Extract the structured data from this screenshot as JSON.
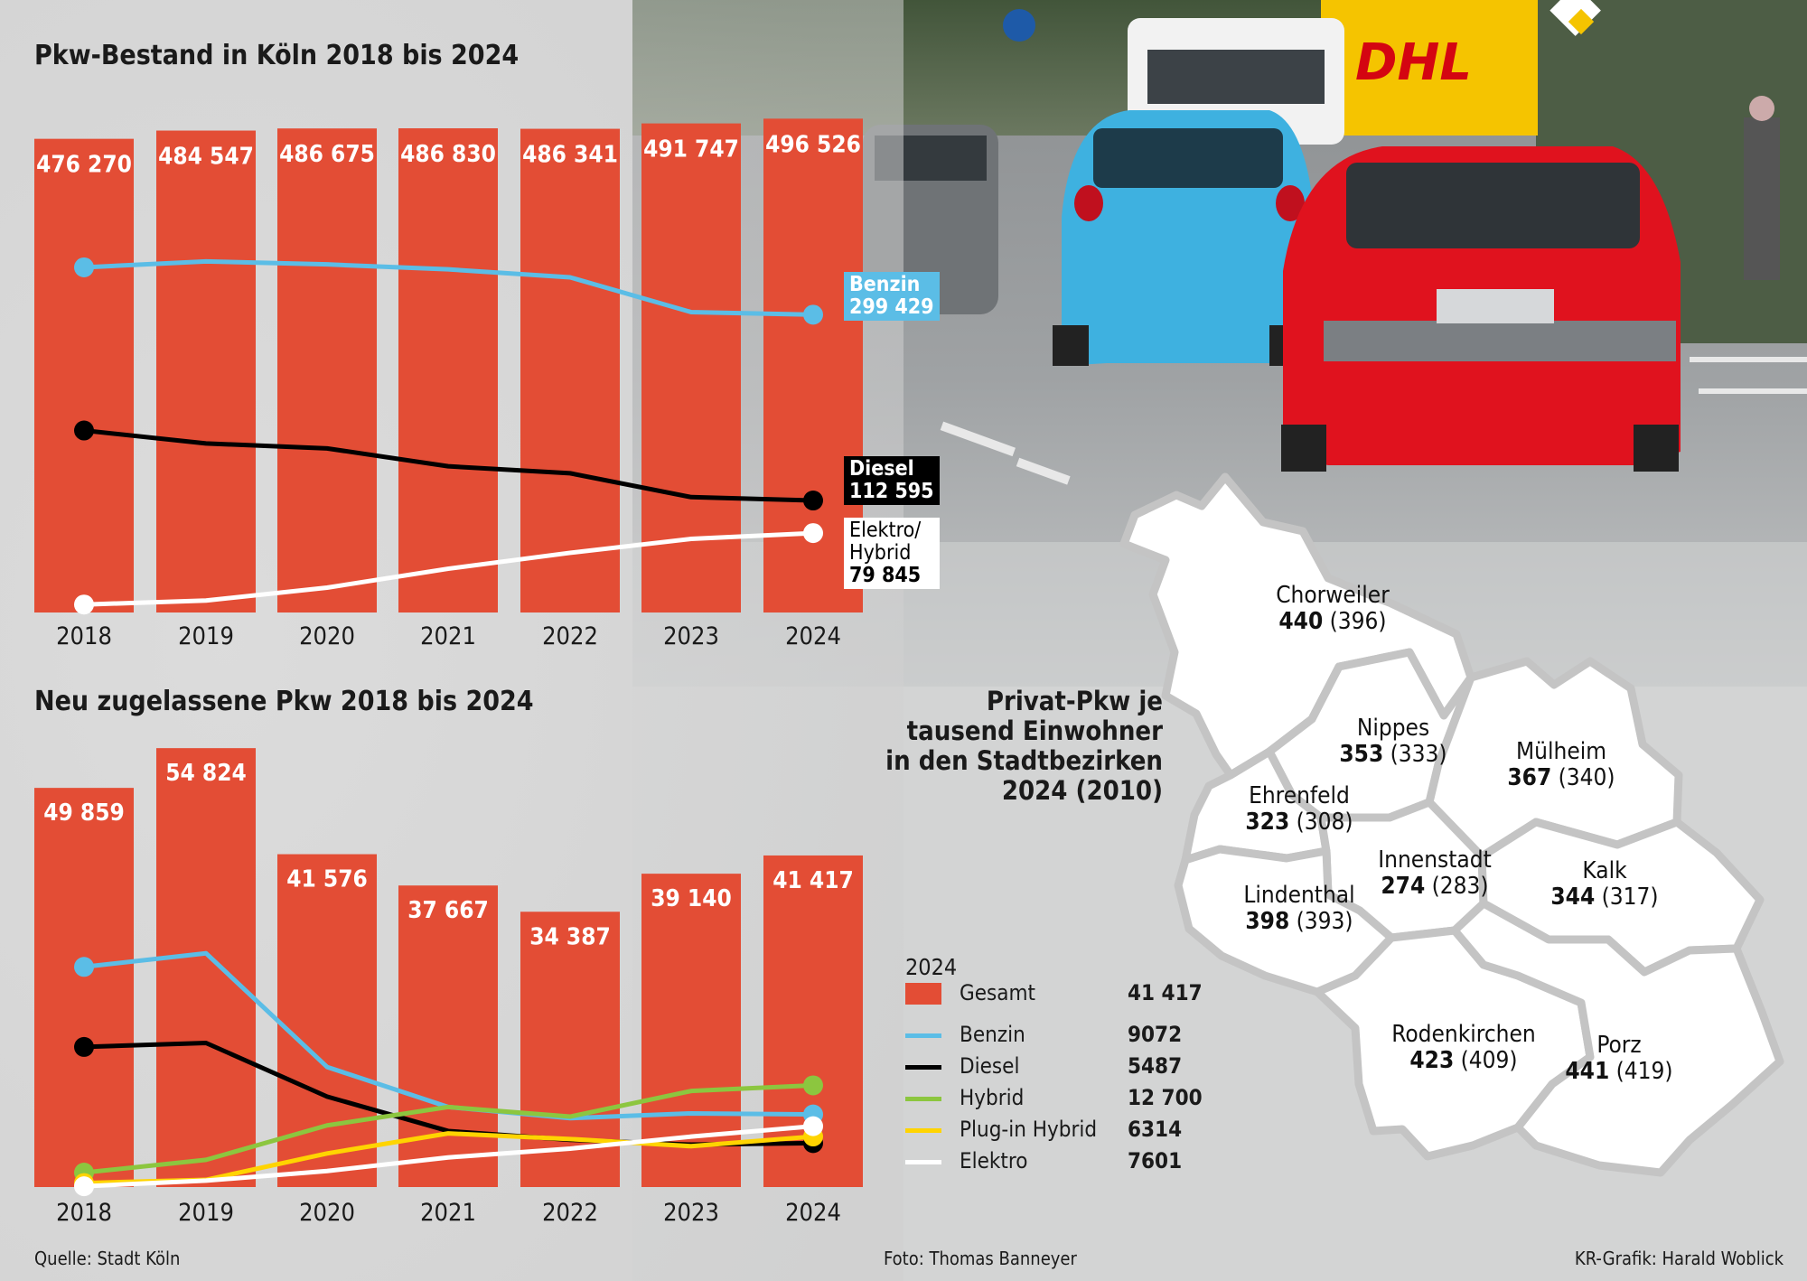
{
  "colors": {
    "bar": "#e34d35",
    "benzin": "#5bbde6",
    "diesel": "#000000",
    "hybrid": "#8cc63f",
    "plugin": "#ffd400",
    "elektro": "#ffffff"
  },
  "chart_data": [
    {
      "type": "bar",
      "title": "Pkw-Bestand in Köln 2018 bis 2024",
      "categories": [
        "2018",
        "2019",
        "2020",
        "2021",
        "2022",
        "2023",
        "2024"
      ],
      "values": [
        476270,
        484547,
        486675,
        486830,
        486341,
        491747,
        496526
      ],
      "value_labels": [
        "476 270",
        "484 547",
        "486 675",
        "486 830",
        "486 341",
        "491 747",
        "496 526"
      ],
      "ylim": [
        0,
        525000
      ],
      "series": [
        {
          "name": "Benzin",
          "values": [
            347000,
            353000,
            350000,
            345000,
            337000,
            302000,
            299429
          ],
          "end_label_name": "Benzin",
          "end_label_value": "299 429"
        },
        {
          "name": "Diesel",
          "values": [
            183000,
            170000,
            165000,
            147000,
            140000,
            116000,
            112595
          ],
          "end_label_name": "Diesel",
          "end_label_value": "112 595"
        },
        {
          "name": "Elektro/ Hybrid",
          "values": [
            8000,
            12000,
            25000,
            44000,
            60000,
            74000,
            79845
          ],
          "end_label_name": "Elektro/ Hybrid",
          "end_label_value": "79 845"
        }
      ]
    },
    {
      "type": "bar",
      "title": "Neu zugelassene Pkw 2018 bis 2024",
      "categories": [
        "2018",
        "2019",
        "2020",
        "2021",
        "2022",
        "2023",
        "2024"
      ],
      "values": [
        49859,
        54824,
        41576,
        37667,
        34387,
        39140,
        41417
      ],
      "value_labels": [
        "49 859",
        "54 824",
        "41 576",
        "37 667",
        "34 387",
        "39 140",
        "41 417"
      ],
      "ylim": [
        0,
        58000
      ],
      "series": [
        {
          "name": "Benzin",
          "values": [
            27500,
            29200,
            15000,
            10000,
            8600,
            9200,
            9072
          ]
        },
        {
          "name": "Diesel",
          "values": [
            17500,
            18000,
            11300,
            7000,
            5900,
            5300,
            5487
          ]
        },
        {
          "name": "Hybrid",
          "values": [
            1800,
            3400,
            7700,
            10000,
            8800,
            12000,
            12700
          ]
        },
        {
          "name": "Plug-in Hybrid",
          "values": [
            500,
            900,
            4200,
            6700,
            6000,
            5100,
            6314
          ]
        },
        {
          "name": "Elektro",
          "values": [
            100,
            800,
            2000,
            3700,
            4800,
            6300,
            7601
          ]
        }
      ]
    }
  ],
  "legend": {
    "year": "2024",
    "items": [
      {
        "label": "Gesamt",
        "value": "41 417",
        "type": "box"
      },
      {
        "label": "Benzin",
        "value": "9072",
        "type": "line"
      },
      {
        "label": "Diesel",
        "value": "5487",
        "type": "line"
      },
      {
        "label": "Hybrid",
        "value": "12 700",
        "type": "line"
      },
      {
        "label": "Plug-in Hybrid",
        "value": "6314",
        "type": "line"
      },
      {
        "label": "Elektro",
        "value": "7601",
        "type": "line"
      }
    ]
  },
  "map": {
    "title_lines": [
      "Privat-Pkw je",
      "tausend Einwohner",
      "in den Stadtbezirken",
      "2024 (2010)"
    ],
    "districts": [
      {
        "name": "Chorweiler",
        "value": "440",
        "prev": "(396)"
      },
      {
        "name": "Nippes",
        "value": "353",
        "prev": "(333)"
      },
      {
        "name": "Mülheim",
        "value": "367",
        "prev": "(340)"
      },
      {
        "name": "Ehrenfeld",
        "value": "323",
        "prev": "(308)"
      },
      {
        "name": "Innenstadt",
        "value": "274",
        "prev": "(283)"
      },
      {
        "name": "Kalk",
        "value": "344",
        "prev": "(317)"
      },
      {
        "name": "Lindenthal",
        "value": "398",
        "prev": "(393)"
      },
      {
        "name": "Rodenkirchen",
        "value": "423",
        "prev": "(409)"
      },
      {
        "name": "Porz",
        "value": "441",
        "prev": "(419)"
      }
    ]
  },
  "credits": {
    "source": "Quelle: Stadt Köln",
    "photo": "Foto: Thomas Banneyer",
    "graphic": "KR-Grafik: Harald Woblick"
  },
  "photo_signs": {
    "dhl": "DHL"
  }
}
